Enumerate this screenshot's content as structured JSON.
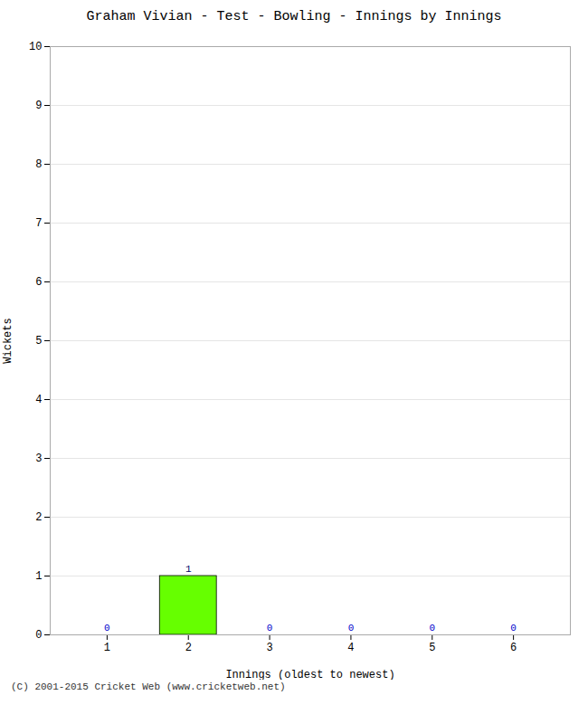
{
  "chart_data": {
    "type": "bar",
    "title": "Graham Vivian - Test - Bowling - Innings by Innings",
    "xlabel": "Innings (oldest to newest)",
    "ylabel": "Wickets",
    "x": [
      1,
      2,
      3,
      4,
      5,
      6
    ],
    "values": [
      0,
      1,
      0,
      0,
      0,
      0
    ],
    "color": "#66ff00",
    "xlim": [
      0.3,
      6.7
    ],
    "xticks": [
      1,
      2,
      3,
      4,
      5,
      6
    ],
    "ylim": [
      0,
      10
    ],
    "yticks": [
      0,
      1,
      2,
      3,
      4,
      5,
      6,
      7,
      8,
      9,
      10
    ],
    "grid": true,
    "data_labels": true,
    "annotations": [
      "(C) 2001-2015 Cricket Web (www.cricketweb.net)"
    ]
  }
}
